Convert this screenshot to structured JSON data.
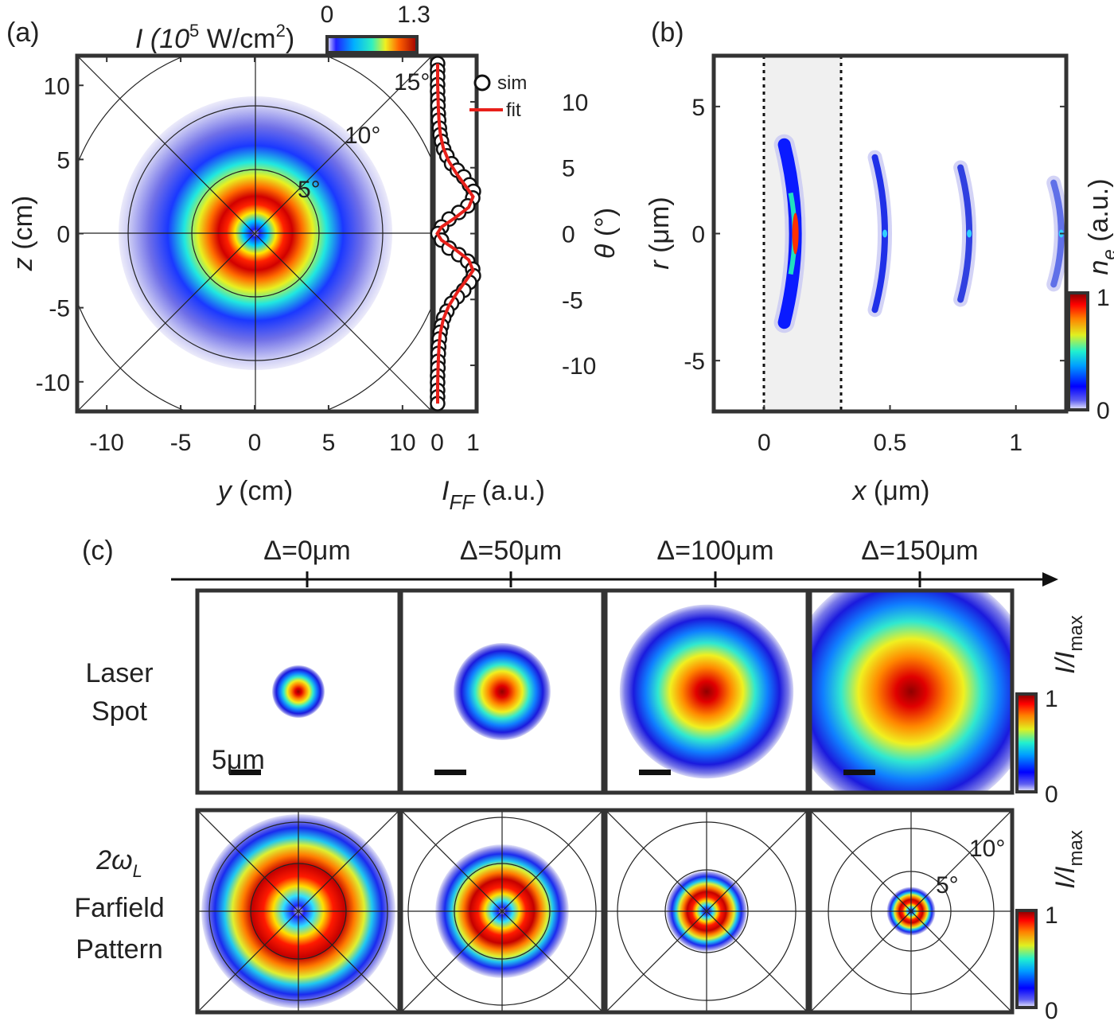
{
  "panels": {
    "a": {
      "label": "(a)",
      "colorbar": {
        "title": "I (10",
        "title_sup": "5",
        "title_unit": " W/cm",
        "title_unit_sup": "2",
        "title_close": ")",
        "min_label": "0",
        "max_label": "1.3"
      },
      "xlabel_var": "y",
      "xlabel_unit": " (cm)",
      "ylabel_var": "z",
      "ylabel_unit": " (cm)",
      "xticks": [
        "-10",
        "-5",
        "0",
        "5",
        "10"
      ],
      "yticks": [
        "10",
        "5",
        "0",
        "-5",
        "-10"
      ],
      "angle_labels": [
        "5°",
        "10°",
        "15°"
      ],
      "lineout": {
        "xlabel_var": "I",
        "xlabel_sub": "FF",
        "xlabel_unit": " (a.u.)",
        "ylabel_var": "θ",
        "ylabel_unit": " (°)",
        "xticks": [
          "0",
          "1"
        ],
        "yticks": [
          "10",
          "5",
          "0",
          "-5",
          "-10"
        ],
        "legend_sim": "sim",
        "legend_fit": "fit"
      }
    },
    "b": {
      "label": "(b)",
      "xlabel_var": "x",
      "xlabel_unit": " (μm)",
      "ylabel_var": "r",
      "ylabel_unit": " (μm)",
      "xticks": [
        "0",
        "0.5",
        "1"
      ],
      "yticks": [
        "5",
        "0",
        "-5"
      ],
      "colorbar": {
        "title_var": "n",
        "title_sub": "e",
        "title_unit": " (a.u.)",
        "min_label": "0",
        "max_label": "1"
      }
    },
    "c": {
      "label": "(c)",
      "columns": [
        "Δ=0μm",
        "Δ=50μm",
        "Δ=100μm",
        "Δ=150μm"
      ],
      "row1_label": [
        "Laser",
        "Spot"
      ],
      "row2_label_var": "2ω",
      "row2_label_sub": "L",
      "row2_label": [
        "Farfield",
        "Pattern"
      ],
      "scalebar_label": "5μm",
      "colorbar_title": "I/I",
      "colorbar_title_sub": "max",
      "colorbar_min": "0",
      "colorbar_max": "1",
      "angle_labels": [
        "5°",
        "10°"
      ]
    }
  },
  "chart_data": [
    {
      "type": "heatmap",
      "id": "a-farfield",
      "title": "",
      "xlabel": "y (cm)",
      "ylabel": "z (cm)",
      "xlim": [
        -12,
        12
      ],
      "ylim": [
        -12,
        12
      ],
      "zlim": [
        0,
        1.3
      ],
      "colormap": "jet",
      "description_values": {
        "ring_peak_radius_cm": 3.0,
        "outer_edge_radius_cm": 9.0
      },
      "polar_circles_deg": [
        5,
        10,
        15
      ]
    },
    {
      "type": "line",
      "id": "a-lineout",
      "xlabel": "I_FF (a.u.)",
      "ylabel": "θ (°)",
      "xlim": [
        -0.1,
        1.1
      ],
      "ylim": [
        -13.5,
        13.5
      ],
      "series": [
        {
          "name": "sim",
          "marker": "circle",
          "x": [
            0.01,
            0.01,
            0.01,
            0.01,
            0.01,
            0.02,
            0.02,
            0.03,
            0.04,
            0.06,
            0.08,
            0.12,
            0.18,
            0.27,
            0.4,
            0.56,
            0.74,
            0.9,
            1.01,
            0.99,
            0.85,
            0.6,
            0.33,
            0.12,
            0.02,
            0.12,
            0.33,
            0.6,
            0.85,
            0.99,
            1.01,
            0.9,
            0.74,
            0.56,
            0.4,
            0.27,
            0.18,
            0.12,
            0.08,
            0.06,
            0.04,
            0.03,
            0.02,
            0.02,
            0.01,
            0.01,
            0.01,
            0.01,
            0.01
          ],
          "y": [
            12.9,
            12.4,
            11.9,
            11.3,
            10.8,
            10.2,
            9.7,
            9.1,
            8.6,
            8.0,
            7.5,
            7.0,
            6.4,
            5.9,
            5.3,
            4.8,
            4.3,
            3.7,
            3.2,
            2.7,
            2.1,
            1.6,
            1.1,
            0.5,
            0.0,
            -0.5,
            -1.1,
            -1.6,
            -2.1,
            -2.7,
            -3.2,
            -3.7,
            -4.3,
            -4.8,
            -5.3,
            -5.9,
            -6.4,
            -7.0,
            -7.5,
            -8.0,
            -8.6,
            -9.1,
            -9.7,
            -10.2,
            -10.8,
            -11.3,
            -11.9,
            -12.4,
            -12.9
          ]
        },
        {
          "name": "fit",
          "color": "#e8201a",
          "x": [
            0.01,
            0.01,
            0.02,
            0.03,
            0.05,
            0.09,
            0.17,
            0.32,
            0.55,
            0.82,
            1.0,
            0.88,
            0.5,
            0.12,
            0.0,
            0.12,
            0.5,
            0.88,
            1.0,
            0.82,
            0.55,
            0.32,
            0.17,
            0.09,
            0.05,
            0.03,
            0.02,
            0.01,
            0.01
          ],
          "y": [
            12.9,
            11.5,
            10.5,
            9.5,
            8.5,
            7.5,
            6.5,
            5.5,
            4.5,
            3.5,
            2.8,
            2.0,
            1.2,
            0.5,
            0.0,
            -0.5,
            -1.2,
            -2.0,
            -2.8,
            -3.5,
            -4.5,
            -5.5,
            -6.5,
            -7.5,
            -8.5,
            -9.5,
            -10.5,
            -11.5,
            -12.9
          ]
        }
      ]
    },
    {
      "type": "heatmap",
      "id": "b-density",
      "xlabel": "x (μm)",
      "ylabel": "r (μm)",
      "xlim": [
        -0.2,
        1.2
      ],
      "ylim": [
        -7,
        7
      ],
      "zlim": [
        0,
        1
      ],
      "colormap": "jet",
      "target_region_x": [
        0.0,
        0.3
      ],
      "bunches": [
        {
          "x": 0.08,
          "r_extent": 3.5,
          "peak": 1.0
        },
        {
          "x": 0.44,
          "r_extent": 3.0,
          "peak": 0.45
        },
        {
          "x": 0.78,
          "r_extent": 2.6,
          "peak": 0.3
        },
        {
          "x": 1.15,
          "r_extent": 2.0,
          "peak": 0.15
        }
      ]
    },
    {
      "type": "heatmap",
      "id": "c-laser-spots",
      "categories": [
        "Δ=0μm",
        "Δ=50μm",
        "Δ=100μm",
        "Δ=150μm"
      ],
      "zlim": [
        0,
        1
      ],
      "spot_relative_radius": [
        0.13,
        0.24,
        0.43,
        0.62
      ]
    },
    {
      "type": "heatmap",
      "id": "c-farfield",
      "categories": [
        "Δ=0μm",
        "Δ=50μm",
        "Δ=100μm",
        "Δ=150μm"
      ],
      "zlim": [
        0,
        1
      ],
      "ring_relative_radius": [
        0.48,
        0.33,
        0.2,
        0.12
      ],
      "polar_circles_deg": [
        5,
        10
      ]
    }
  ]
}
